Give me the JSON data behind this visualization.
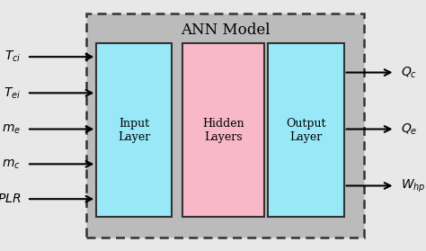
{
  "fig_width": 4.74,
  "fig_height": 2.79,
  "dpi": 100,
  "fig_bg_color": "#e8e8e8",
  "box_bg_color": "#bbbbbb",
  "ann_title": "ANN Model",
  "layers": [
    {
      "label": "Input\nLayer",
      "facecolor": "#99e8f8",
      "edgecolor": "#333333"
    },
    {
      "label": "Hidden\nLayers",
      "facecolor": "#f8b8c8",
      "edgecolor": "#333333"
    },
    {
      "label": "Output\nLayer",
      "facecolor": "#99e8f8",
      "edgecolor": "#333333"
    }
  ],
  "input_labels": [
    "$T_{ci}$",
    "$T_{ei}$",
    "$m_e$",
    "$m_c$",
    "$PLR$"
  ],
  "output_labels": [
    "$Q_c$",
    "$Q_e$",
    "$W_{hp}$"
  ],
  "font_size_title": 12,
  "font_size_label": 9,
  "font_size_io": 10
}
